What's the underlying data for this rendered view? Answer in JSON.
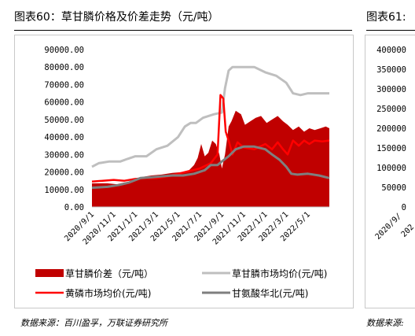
{
  "figure60": {
    "title": "图表60：草甘膦价格及价差走势（元/吨）",
    "source": "数据来源：百川盈孚，万联证券研究所"
  },
  "figure61": {
    "title": "图表61:",
    "source": "数据来源:",
    "y_ticks": [
      "400000",
      "350000",
      "300000",
      "250000",
      "200000",
      "150000",
      "100000",
      "50000",
      "0"
    ],
    "x_ticks_partial": [
      "2020/9/",
      "202"
    ]
  },
  "chart_data": {
    "type": "area",
    "title": "",
    "xlabel": "",
    "ylabel": "",
    "ylim": [
      0,
      90000
    ],
    "y_ticks": [
      "90000.00",
      "80000.00",
      "70000.00",
      "60000.00",
      "50000.00",
      "40000.00",
      "30000.00",
      "20000.00",
      "10000.00",
      "0.00"
    ],
    "x_ticks": [
      "2020/9/1",
      "2020/11/1",
      "2021/1/1",
      "2021/3/1",
      "2021/5/1",
      "2021/7/1",
      "2021/9/1",
      "2021/11/1",
      "2022/1/1",
      "2022/3/1",
      "2022/5/1"
    ],
    "x_range": [
      "2020-09-01",
      "2022-06-30"
    ],
    "legend_position": "bottom",
    "grid": false,
    "colors": {
      "price_spread": "#c00000",
      "glyphosate_price": "#bfbfbf",
      "yellow_phosphorus_price": "#ff0000",
      "glycine_north_china": "#7f7f7f"
    },
    "series": [
      {
        "name": "草甘膦价差（元/吨）",
        "style": "area",
        "points": [
          [
            "2020-09-01",
            13500
          ],
          [
            "2020-10-15",
            13500
          ],
          [
            "2020-11-10",
            13000
          ],
          [
            "2020-12-01",
            14000
          ],
          [
            "2020-12-20",
            14500
          ],
          [
            "2021-01-15",
            17000
          ],
          [
            "2021-02-15",
            18000
          ],
          [
            "2021-03-15",
            18500
          ],
          [
            "2021-04-15",
            19500
          ],
          [
            "2021-05-15",
            20000
          ],
          [
            "2021-06-01",
            21000
          ],
          [
            "2021-06-15",
            24000
          ],
          [
            "2021-06-25",
            28000
          ],
          [
            "2021-07-05",
            36000
          ],
          [
            "2021-07-15",
            29000
          ],
          [
            "2021-07-25",
            31000
          ],
          [
            "2021-08-05",
            38000
          ],
          [
            "2021-08-15",
            36000
          ],
          [
            "2021-08-25",
            30000
          ],
          [
            "2021-09-01",
            22000
          ],
          [
            "2021-09-10",
            30000
          ],
          [
            "2021-09-20",
            46000
          ],
          [
            "2021-09-28",
            49000
          ],
          [
            "2021-10-10",
            55000
          ],
          [
            "2021-10-25",
            53000
          ],
          [
            "2021-11-05",
            47000
          ],
          [
            "2021-11-20",
            49000
          ],
          [
            "2021-12-05",
            51000
          ],
          [
            "2021-12-20",
            52000
          ],
          [
            "2022-01-05",
            48000
          ],
          [
            "2022-01-20",
            50000
          ],
          [
            "2022-02-05",
            52000
          ],
          [
            "2022-02-20",
            49000
          ],
          [
            "2022-03-05",
            47000
          ],
          [
            "2022-03-20",
            44000
          ],
          [
            "2022-04-05",
            46000
          ],
          [
            "2022-04-20",
            43000
          ],
          [
            "2022-05-05",
            45000
          ],
          [
            "2022-05-20",
            44000
          ],
          [
            "2022-06-05",
            45000
          ],
          [
            "2022-06-20",
            46000
          ],
          [
            "2022-06-30",
            45000
          ]
        ]
      },
      {
        "name": "草甘膦市场均价(元/吨)",
        "style": "line",
        "points": [
          [
            "2020-09-01",
            23000
          ],
          [
            "2020-09-20",
            25000
          ],
          [
            "2020-10-20",
            26000
          ],
          [
            "2020-11-20",
            26000
          ],
          [
            "2020-12-10",
            27500
          ],
          [
            "2021-01-01",
            29000
          ],
          [
            "2021-02-01",
            29000
          ],
          [
            "2021-03-01",
            33000
          ],
          [
            "2021-04-01",
            35000
          ],
          [
            "2021-05-01",
            40000
          ],
          [
            "2021-05-20",
            46000
          ],
          [
            "2021-06-05",
            48000
          ],
          [
            "2021-06-20",
            48000
          ],
          [
            "2021-07-10",
            51000
          ],
          [
            "2021-08-10",
            53000
          ],
          [
            "2021-09-01",
            54000
          ],
          [
            "2021-09-10",
            68000
          ],
          [
            "2021-09-20",
            78000
          ],
          [
            "2021-10-01",
            80000
          ],
          [
            "2021-11-01",
            80000
          ],
          [
            "2021-12-01",
            80000
          ],
          [
            "2022-01-01",
            77000
          ],
          [
            "2022-02-01",
            75000
          ],
          [
            "2022-03-01",
            71000
          ],
          [
            "2022-03-20",
            65000
          ],
          [
            "2022-04-10",
            64000
          ],
          [
            "2022-05-01",
            65000
          ],
          [
            "2022-06-01",
            65000
          ],
          [
            "2022-06-30",
            65000
          ]
        ]
      },
      {
        "name": "黄磷市场均价(元/吨)",
        "style": "line",
        "points": [
          [
            "2020-09-01",
            14500
          ],
          [
            "2020-10-01",
            15000
          ],
          [
            "2020-11-01",
            15500
          ],
          [
            "2020-12-01",
            15000
          ],
          [
            "2021-01-01",
            16000
          ],
          [
            "2021-02-01",
            16500
          ],
          [
            "2021-03-01",
            16500
          ],
          [
            "2021-04-01",
            17500
          ],
          [
            "2021-05-01",
            19000
          ],
          [
            "2021-06-01",
            20500
          ],
          [
            "2021-07-01",
            22000
          ],
          [
            "2021-08-01",
            25000
          ],
          [
            "2021-08-20",
            30000
          ],
          [
            "2021-08-28",
            64000
          ],
          [
            "2021-09-05",
            62000
          ],
          [
            "2021-09-12",
            43000
          ],
          [
            "2021-09-20",
            38000
          ],
          [
            "2021-10-01",
            30000
          ],
          [
            "2021-10-15",
            37000
          ],
          [
            "2021-11-01",
            34000
          ],
          [
            "2021-12-01",
            33000
          ],
          [
            "2022-01-01",
            36000
          ],
          [
            "2022-01-20",
            33000
          ],
          [
            "2022-02-05",
            37000
          ],
          [
            "2022-02-20",
            33000
          ],
          [
            "2022-03-05",
            30000
          ],
          [
            "2022-03-20",
            38000
          ],
          [
            "2022-04-05",
            35000
          ],
          [
            "2022-04-20",
            38000
          ],
          [
            "2022-05-05",
            36000
          ],
          [
            "2022-05-20",
            38000
          ],
          [
            "2022-06-10",
            37500
          ],
          [
            "2022-06-30",
            38000
          ]
        ]
      },
      {
        "name": "甘氨酸华北(元/吨)",
        "style": "line",
        "points": [
          [
            "2020-09-01",
            11000
          ],
          [
            "2020-10-15",
            11500
          ],
          [
            "2020-11-15",
            12500
          ],
          [
            "2020-12-15",
            14000
          ],
          [
            "2021-01-15",
            16500
          ],
          [
            "2021-02-15",
            17000
          ],
          [
            "2021-03-15",
            17500
          ],
          [
            "2021-04-15",
            18000
          ],
          [
            "2021-05-15",
            18000
          ],
          [
            "2021-06-15",
            19000
          ],
          [
            "2021-07-15",
            21000
          ],
          [
            "2021-08-01",
            24000
          ],
          [
            "2021-08-20",
            24000
          ],
          [
            "2021-09-01",
            26000
          ],
          [
            "2021-09-20",
            29000
          ],
          [
            "2021-10-10",
            33000
          ],
          [
            "2021-11-01",
            34500
          ],
          [
            "2021-12-01",
            34500
          ],
          [
            "2022-01-01",
            33000
          ],
          [
            "2022-01-20",
            30000
          ],
          [
            "2022-02-10",
            27000
          ],
          [
            "2022-03-01",
            23000
          ],
          [
            "2022-03-15",
            19000
          ],
          [
            "2022-04-01",
            18500
          ],
          [
            "2022-05-01",
            19000
          ],
          [
            "2022-06-01",
            18000
          ],
          [
            "2022-06-30",
            16500
          ]
        ]
      }
    ]
  }
}
